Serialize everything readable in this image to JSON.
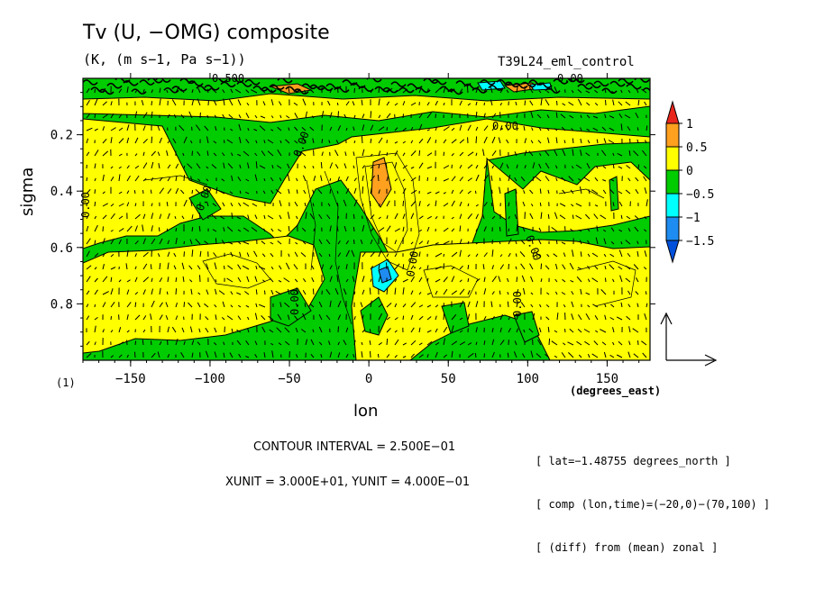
{
  "chart_data": {
    "type": "contour",
    "title": "Tv (U, −OMG) composite",
    "subtitle": "(K, (m s−1, Pa s−1))",
    "experiment": "T39L24_eml_control",
    "xlabel": "lon",
    "xunit": "(degrees_east)",
    "ylabel": "sigma",
    "xlim": [
      -180,
      177
    ],
    "ylim": [
      1.0,
      0.0
    ],
    "xticks": [
      "−150",
      "−100",
      "−50",
      "0",
      "50",
      "100",
      "150"
    ],
    "xtick_values": [
      -150,
      -100,
      -50,
      0,
      50,
      100,
      150
    ],
    "yticks": [
      "0.2",
      "0.4",
      "0.6",
      "0.8"
    ],
    "ytick_values": [
      0.2,
      0.4,
      0.6,
      0.8
    ],
    "contour_labels": [
      "0.00",
      "0.00",
      "0.00",
      "0.00",
      "0.00",
      "0.00",
      "0.00",
      "0.00",
      "0.500",
      "0.00"
    ],
    "colorbar": {
      "labels": [
        "1",
        "0.5",
        "0",
        "−0.5",
        "−1",
        "−1.5"
      ],
      "levels": [
        1,
        0.5,
        0,
        -0.5,
        -1,
        -1.5
      ],
      "colors": [
        "#e8261c",
        "#ffa01e",
        "#ffff00",
        "#00cc00",
        "#00ffff",
        "#1e8cf0",
        "#0050dc"
      ]
    },
    "footnote": "(1)",
    "contour_interval": "CONTOUR INTERVAL = 2.500E−01",
    "units_line": "XUNIT = 3.000E+01, YUNIT = 4.000E−01",
    "info": [
      "[ lat=−1.48755 degrees_north ]",
      "[ comp (lon,time)=(−20,0)−(70,100) ]",
      "[ (diff) from (mean) zonal ]"
    ]
  }
}
